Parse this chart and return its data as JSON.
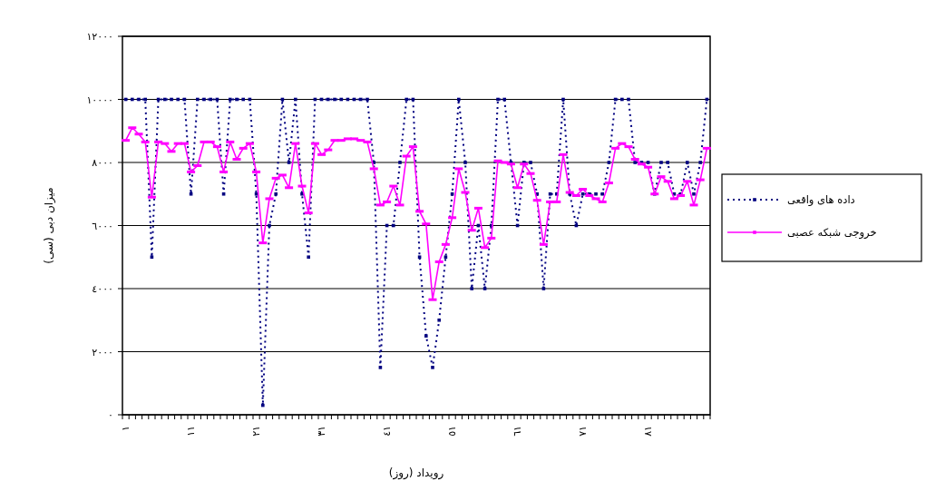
{
  "chart_data": {
    "type": "line",
    "xlabel": "رویداد (روز)",
    "ylabel": "میزان دبی (سی)",
    "categories": [
      "١",
      null,
      null,
      null,
      null,
      null,
      null,
      null,
      null,
      null,
      "١١",
      null,
      null,
      null,
      null,
      null,
      null,
      null,
      null,
      null,
      "٢١",
      null,
      null,
      null,
      null,
      null,
      null,
      null,
      null,
      null,
      "٣١",
      null,
      null,
      null,
      null,
      null,
      null,
      null,
      null,
      null,
      "٤١",
      null,
      null,
      null,
      null,
      null,
      null,
      null,
      null,
      null,
      "٥١",
      null,
      null,
      null,
      null,
      null,
      null,
      null,
      null,
      null,
      "٦١",
      null,
      null,
      null,
      null,
      null,
      null,
      null,
      null,
      null,
      "٧١",
      null,
      null,
      null,
      null,
      null,
      null,
      null,
      null,
      null,
      "٨١",
      null,
      null,
      null,
      null,
      null,
      null,
      null,
      null,
      null
    ],
    "series": [
      {
        "name": "داده های واقعی",
        "color": "#000080",
        "line_style": "dotted",
        "marker": "square",
        "values": [
          10000,
          10000,
          10000,
          10000,
          5000,
          10000,
          10000,
          10000,
          10000,
          10000,
          7000,
          10000,
          10000,
          10000,
          10000,
          7000,
          10000,
          10000,
          10000,
          10000,
          7000,
          300,
          6000,
          7000,
          10000,
          8000,
          10000,
          7000,
          5000,
          10000,
          10000,
          10000,
          10000,
          10000,
          10000,
          10000,
          10000,
          10000,
          8000,
          1500,
          6000,
          6000,
          8000,
          10000,
          10000,
          5000,
          2500,
          1500,
          3000,
          5000,
          7000,
          10000,
          8000,
          4000,
          6000,
          4000,
          6000,
          10000,
          10000,
          8000,
          6000,
          8000,
          8000,
          7000,
          4000,
          7000,
          7000,
          10000,
          7000,
          6000,
          7000,
          7000,
          7000,
          7000,
          8000,
          10000,
          10000,
          10000,
          8000,
          8000,
          8000,
          7000,
          8000,
          8000,
          7000,
          7000,
          8000,
          7000,
          8000,
          10000
        ]
      },
      {
        "name": "خروجی شبکه عصبی",
        "color": "#ff00ff",
        "line_style": "solid",
        "marker": "square",
        "values": [
          8700,
          9100,
          8900,
          8650,
          6900,
          8650,
          8600,
          8350,
          8600,
          8600,
          7700,
          7900,
          8650,
          8650,
          8500,
          7700,
          8650,
          8100,
          8450,
          8600,
          7700,
          5450,
          6850,
          7500,
          7600,
          7200,
          8600,
          7250,
          6400,
          8600,
          8250,
          8400,
          8700,
          8700,
          8750,
          8750,
          8700,
          8650,
          7800,
          6650,
          6750,
          7250,
          6650,
          8200,
          8500,
          6450,
          6050,
          3650,
          4850,
          5400,
          6250,
          7800,
          7050,
          5850,
          6550,
          5300,
          5600,
          8050,
          8000,
          7950,
          7200,
          7950,
          7650,
          6800,
          5400,
          6750,
          6750,
          8250,
          7050,
          6950,
          7150,
          6950,
          6850,
          6750,
          7350,
          8450,
          8600,
          8500,
          8100,
          7950,
          7850,
          7000,
          7550,
          7400,
          6850,
          6950,
          7400,
          6650,
          7450,
          8450
        ]
      }
    ],
    "ylim": [
      0,
      12000
    ],
    "yticks": [
      {
        "value": 0,
        "label": "٠"
      },
      {
        "value": 2000,
        "label": "٢٠٠٠"
      },
      {
        "value": 4000,
        "label": "٤٠٠٠"
      },
      {
        "value": 6000,
        "label": "٦٠٠٠"
      },
      {
        "value": 8000,
        "label": "٨٠٠٠"
      },
      {
        "value": 10000,
        "label": "١٠٠٠٠"
      },
      {
        "value": 12000,
        "label": "١٢٠٠٠"
      }
    ],
    "grid": "y",
    "legend": "right"
  }
}
